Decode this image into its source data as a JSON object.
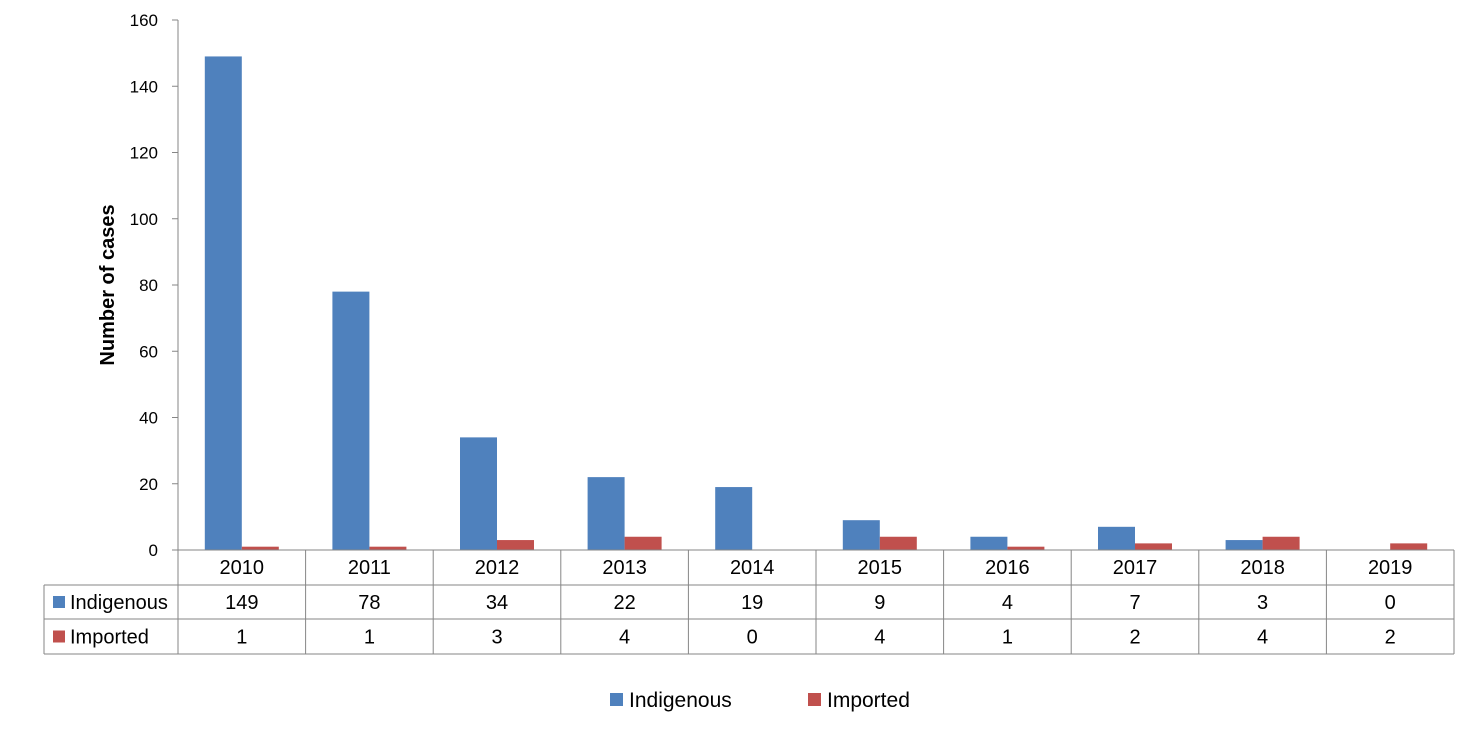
{
  "chart_data": {
    "type": "bar",
    "categories": [
      "2010",
      "2011",
      "2012",
      "2013",
      "2014",
      "2015",
      "2016",
      "2017",
      "2018",
      "2019"
    ],
    "series": [
      {
        "name": "Indigenous",
        "color": "#4f81bd",
        "values": [
          149,
          78,
          34,
          22,
          19,
          9,
          4,
          7,
          3,
          0
        ]
      },
      {
        "name": "Imported",
        "color": "#c0504d",
        "values": [
          1,
          1,
          3,
          4,
          0,
          4,
          1,
          2,
          4,
          2
        ]
      }
    ],
    "title": "",
    "xlabel": "",
    "ylabel": "Number of cases",
    "ylim": [
      0,
      160
    ],
    "yticks": [
      0,
      20,
      40,
      60,
      80,
      100,
      120,
      140,
      160
    ],
    "grid": false,
    "legend": "bottom-center",
    "data_table": true,
    "data_table_values": {
      "Indigenous": [
        "149",
        "78",
        "34",
        "22",
        "19",
        "9",
        "4",
        "7",
        "3",
        "0"
      ],
      "Imported": [
        "1",
        "1",
        "3",
        "4",
        "0",
        "4",
        "1",
        "2",
        "4",
        "2"
      ]
    }
  }
}
